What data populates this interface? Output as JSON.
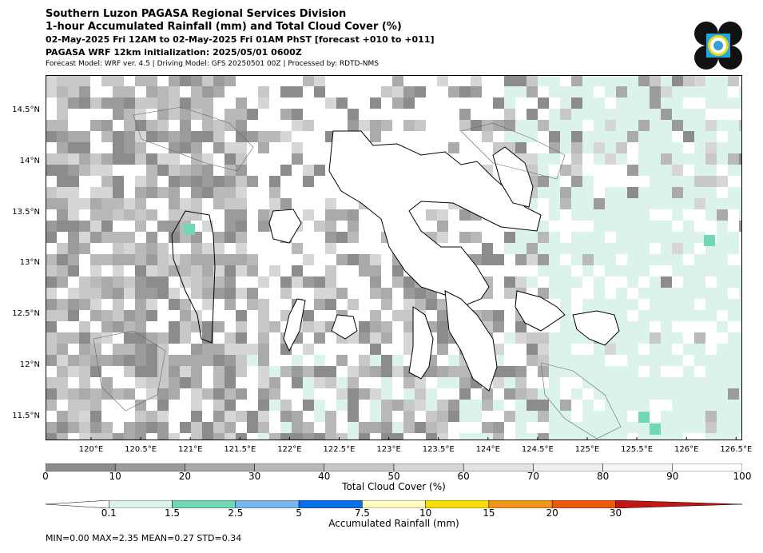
{
  "header": {
    "line1": "Southern Luzon PAGASA Regional Services Division",
    "line2": "1-hour Accumulated Rainfall (mm) and Total Cloud Cover (%)",
    "line3": "02-May-2025 Fri 12AM to 02-May-2025 Fri 01AM PhST [forecast +010 to +011]",
    "line4": "PAGASA WRF 12km initialization: 2025/05/01 0600Z",
    "line5": "Forecast Model: WRF ver. 4.5 | Driving Model: GFS 20250501 00Z | Processed by: RDTD-NMS"
  },
  "map": {
    "lon_ticks": [
      "120°E",
      "120.5°E",
      "121°E",
      "121.5°E",
      "122°E",
      "122.5°E",
      "123°E",
      "123.5°E",
      "124°E",
      "124.5°E",
      "125°E",
      "125.5°E",
      "126°E",
      "126.5°E"
    ],
    "lat_ticks": [
      "14.5°N",
      "14°N",
      "13.5°N",
      "13°N",
      "12.5°N",
      "12°N",
      "11.5°N"
    ],
    "colors": {
      "sea_low_cloud": "#dcf3ec",
      "rain_low": "#70d8b5",
      "coast": "#000000"
    }
  },
  "cloud_cover_bar": {
    "title": "Total Cloud Cover (%)",
    "ticks": [
      "0",
      "10",
      "20",
      "30",
      "40",
      "50",
      "60",
      "70",
      "80",
      "90",
      "100"
    ],
    "colors": [
      "#8c8c8c",
      "#9b9b9b",
      "#aaaaaa",
      "#b9b9b9",
      "#c8c8c8",
      "#d6d6d6",
      "#e3e3e3",
      "#efefef",
      "#f7f7f7",
      "#ffffff"
    ]
  },
  "rain_bar": {
    "title": "Accumulated Rainfall (mm)",
    "ticks": [
      "0.1",
      "1.5",
      "2.5",
      "5",
      "7.5",
      "10",
      "15",
      "20",
      "30"
    ],
    "colors": [
      "#ffffff",
      "#dcf3ec",
      "#6fd8b4",
      "#78b6ee",
      "#0a6fe6",
      "#fffcc2",
      "#f8dc0a",
      "#f3951a",
      "#ea5a0c",
      "#c21515"
    ]
  },
  "stats": "MIN=0.00   MAX=2.35   MEAN=0.27   STD=0.34"
}
